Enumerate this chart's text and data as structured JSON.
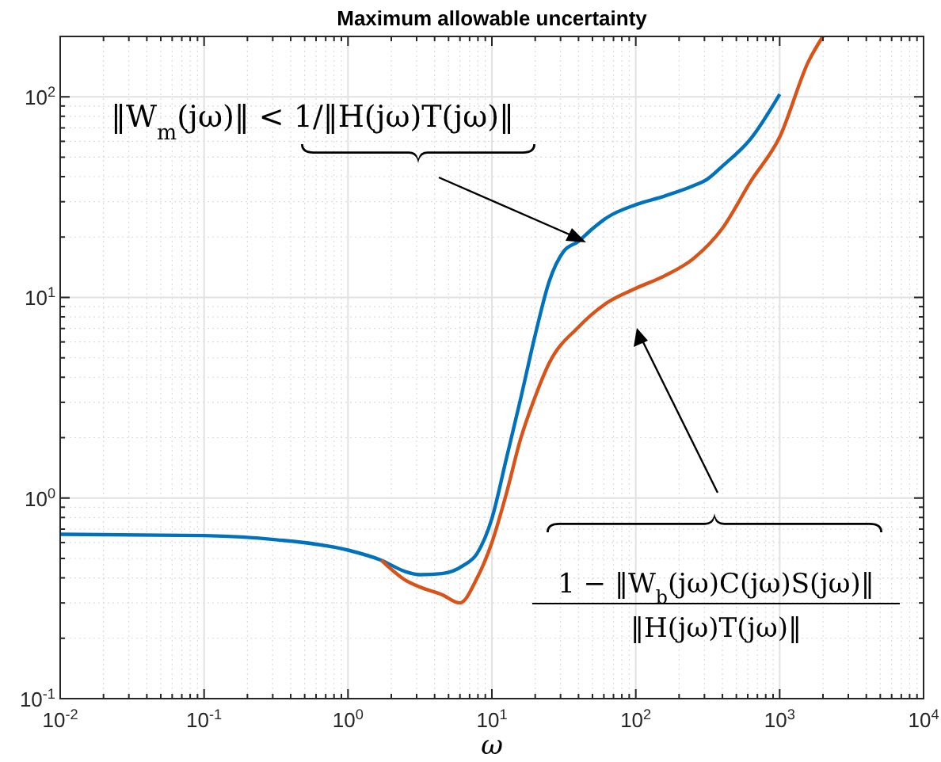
{
  "chart_data": {
    "type": "line",
    "title": "Maximum allowable uncertainty",
    "xlabel": "ω",
    "log": "xy",
    "grid": true,
    "line_style": "solid",
    "marker": "none",
    "xlim": [
      0.01,
      10000
    ],
    "ylim": [
      0.1,
      200
    ],
    "xticks": [
      {
        "value": 0.01,
        "label": "10$^{-2}$"
      },
      {
        "value": 0.1,
        "label": "10$^{-1}$"
      },
      {
        "value": 1,
        "label": "10$^{0}$"
      },
      {
        "value": 10,
        "label": "10$^{1}$"
      },
      {
        "value": 100,
        "label": "10$^{2}$"
      },
      {
        "value": 1000,
        "label": "10$^{3}$"
      },
      {
        "value": 10000,
        "label": "10$^{4}$"
      }
    ],
    "yticks": [
      {
        "value": 0.1,
        "label": "10$^{-1}$"
      },
      {
        "value": 1,
        "label": "10$^{0}$"
      },
      {
        "value": 10,
        "label": "10$^{1}$"
      },
      {
        "value": 100,
        "label": "10$^{2}$"
      }
    ],
    "annotations": [
      "‖W$_{m}$(jω)‖ < 1/‖H(jω)T(jω)‖",
      "1 − ‖W$_{b}$(jω)C(jω)S(jω)‖",
      "‖H(jω)T(jω)‖"
    ],
    "series": [
      {
        "color": "#0072bd",
        "x": [
          0.01,
          0.1,
          0.316,
          1,
          1.7,
          2.5,
          3.16,
          4.5,
          6.3,
          7.9,
          10,
          12.6,
          15.8,
          20,
          25,
          31.6,
          39.8,
          50,
          63,
          100,
          158,
          251,
          316,
          398,
          631,
          1000
        ],
        "values": [
          0.66,
          0.65,
          0.62,
          0.55,
          0.49,
          0.43,
          0.415,
          0.42,
          0.46,
          0.53,
          0.79,
          1.57,
          3.1,
          6.5,
          12,
          17,
          19,
          22,
          25,
          29,
          32,
          36,
          39,
          45,
          62,
          103
        ]
      },
      {
        "color": "#d95319",
        "x": [
          1.7,
          2.5,
          3.16,
          4.5,
          6,
          7.9,
          10,
          12.6,
          15.8,
          20,
          25,
          39.8,
          63,
          100,
          158,
          251,
          398,
          631,
          1000,
          1585,
          1995
        ],
        "values": [
          0.49,
          0.39,
          0.36,
          0.33,
          0.3,
          0.4,
          0.6,
          1.05,
          1.96,
          3.2,
          4.7,
          7.1,
          9.4,
          11.1,
          12.8,
          15.6,
          22,
          38,
          63,
          150,
          200
        ]
      }
    ]
  }
}
